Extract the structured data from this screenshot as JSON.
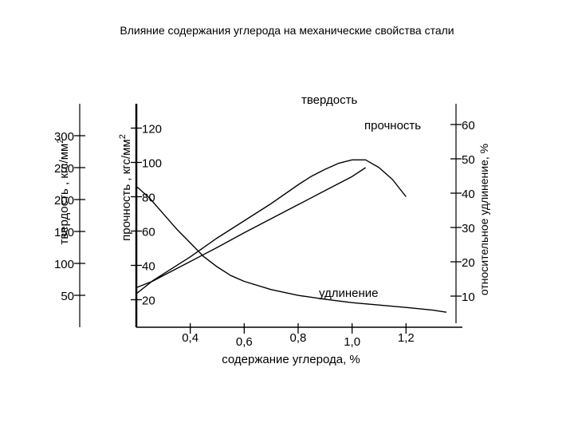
{
  "title": "Влияние содержания углерода на механические свойства стали",
  "chart_data": {
    "type": "line",
    "xlabel": "содержание углерода, %",
    "x_ticks": [
      "0,4",
      "0,6",
      "0,8",
      "1,0",
      "1,2"
    ],
    "x_tick_values": [
      0.4,
      0.6,
      0.8,
      1.0,
      1.2
    ],
    "xlim": [
      0.2,
      1.4
    ],
    "axes": [
      {
        "id": "hardness",
        "label": "твердость , кгс/мм",
        "label_sup": "2",
        "ticks": [
          "50",
          "100",
          "150",
          "200",
          "250",
          "300"
        ],
        "tick_values": [
          50,
          100,
          150,
          200,
          250,
          300
        ],
        "ylim": [
          0,
          350
        ]
      },
      {
        "id": "strength",
        "label": "прочность , кгс/мм",
        "label_sup": "2",
        "ticks": [
          "20",
          "40",
          "60",
          "80",
          "100",
          "120"
        ],
        "tick_values": [
          20,
          40,
          60,
          80,
          100,
          120
        ],
        "ylim": [
          10,
          130
        ]
      },
      {
        "id": "elongation",
        "label": "относительное удлинение, %",
        "ticks": [
          "10",
          "20",
          "30",
          "40",
          "50",
          "60"
        ],
        "tick_values": [
          10,
          20,
          30,
          40,
          50,
          60
        ],
        "ylim": [
          4,
          66
        ]
      }
    ],
    "series": [
      {
        "name": "твердость",
        "axis": "hardness",
        "x": [
          0.2,
          0.26,
          0.3,
          0.4,
          0.5,
          0.6,
          0.7,
          0.8,
          0.9,
          1.0,
          1.05
        ],
        "y": [
          62,
          72,
          81,
          103,
          125,
          148,
          170,
          192,
          214,
          236,
          250
        ]
      },
      {
        "name": "прочность",
        "axis": "strength",
        "x": [
          0.2,
          0.26,
          0.3,
          0.4,
          0.5,
          0.6,
          0.7,
          0.8,
          0.85,
          0.9,
          0.95,
          1.0,
          1.05,
          1.1,
          1.15,
          1.2
        ],
        "y": [
          23.5,
          31,
          35,
          45,
          56,
          66,
          76,
          87,
          92,
          96,
          99.5,
          101.5,
          101.5,
          97,
          90,
          80
        ]
      },
      {
        "name": "удлинение",
        "axis": "elongation",
        "x": [
          0.2,
          0.25,
          0.3,
          0.35,
          0.4,
          0.45,
          0.5,
          0.55,
          0.6,
          0.7,
          0.8,
          0.9,
          1.0,
          1.1,
          1.2,
          1.3,
          1.35
        ],
        "y": [
          42,
          38.5,
          34,
          29.5,
          25.5,
          21.5,
          18.5,
          16,
          14.3,
          11.9,
          10.2,
          9.1,
          8.1,
          7.4,
          6.7,
          5.9,
          5.3
        ]
      }
    ]
  }
}
